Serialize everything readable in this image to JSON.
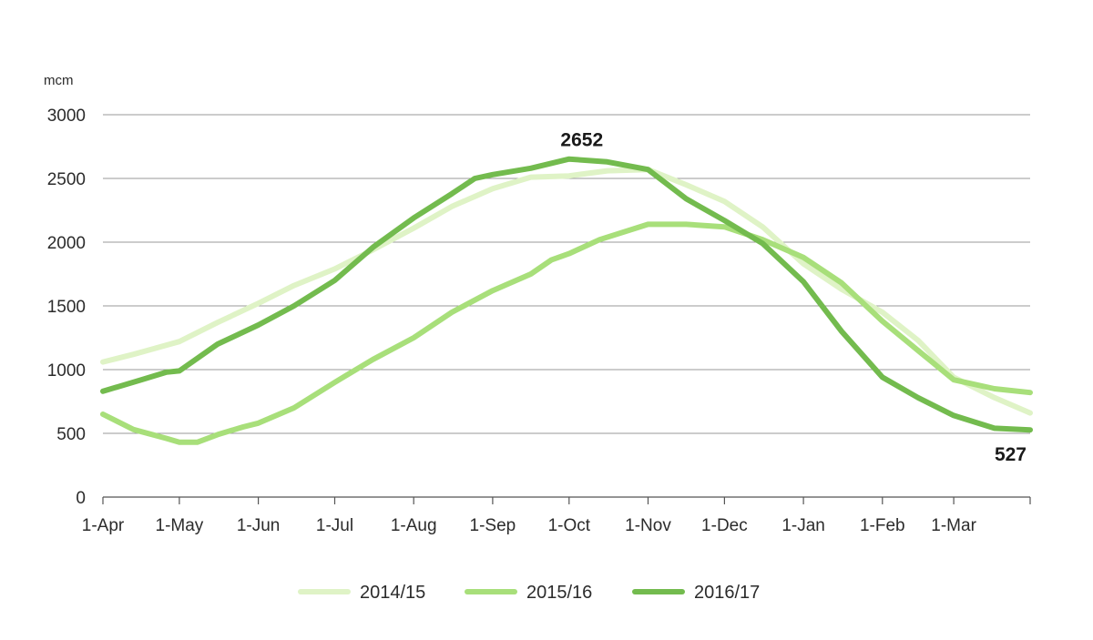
{
  "chart_data": {
    "type": "line",
    "title": "",
    "xlabel": "",
    "ylabel": "mcm",
    "ylim": [
      0,
      3000
    ],
    "yticks": [
      0,
      500,
      1000,
      1500,
      2000,
      2500,
      3000
    ],
    "x_tick_labels": [
      "1-Apr",
      "1-May",
      "1-Jun",
      "1-Jul",
      "1-Aug",
      "1-Sep",
      "1-Oct",
      "1-Nov",
      "1-Dec",
      "1-Jan",
      "1-Feb",
      "1-Mar"
    ],
    "x_tick_days": [
      0,
      30,
      61,
      91,
      122,
      153,
      183,
      214,
      244,
      275,
      306,
      334
    ],
    "x_max_day": 364,
    "grid": "horizontal",
    "legend_position": "bottom",
    "annotations": [
      {
        "text": "2652",
        "series": "2016/17",
        "x_day": 183,
        "y": 2652
      },
      {
        "text": "527",
        "series": "2016/17",
        "x_day": 364,
        "y": 527
      }
    ],
    "series": [
      {
        "name": "2014/15",
        "color": "#dff3c6",
        "x_days": [
          0,
          12,
          30,
          45,
          61,
          75,
          91,
          106,
          122,
          137,
          153,
          168,
          183,
          198,
          214,
          229,
          244,
          259,
          275,
          290,
          306,
          320,
          334,
          350,
          364
        ],
        "values": [
          1060,
          1120,
          1220,
          1370,
          1520,
          1660,
          1790,
          1940,
          2110,
          2280,
          2420,
          2510,
          2520,
          2560,
          2570,
          2450,
          2320,
          2120,
          1830,
          1630,
          1450,
          1230,
          940,
          780,
          660
        ]
      },
      {
        "name": "2015/16",
        "color": "#a8df7a",
        "x_days": [
          0,
          12,
          25,
          30,
          37,
          45,
          55,
          61,
          75,
          91,
          106,
          122,
          137,
          153,
          168,
          176,
          183,
          195,
          214,
          229,
          244,
          259,
          275,
          290,
          306,
          320,
          334,
          350,
          364
        ],
        "values": [
          650,
          530,
          460,
          430,
          430,
          490,
          550,
          580,
          700,
          900,
          1080,
          1250,
          1450,
          1620,
          1750,
          1860,
          1910,
          2020,
          2140,
          2140,
          2120,
          2020,
          1880,
          1680,
          1380,
          1150,
          920,
          850,
          820
        ]
      },
      {
        "name": "2016/17",
        "color": "#73bb4e",
        "x_days": [
          0,
          15,
          25,
          30,
          45,
          61,
          75,
          91,
          106,
          122,
          137,
          146,
          153,
          168,
          183,
          198,
          214,
          229,
          244,
          259,
          275,
          290,
          306,
          320,
          334,
          350,
          364
        ],
        "values": [
          830,
          920,
          980,
          990,
          1200,
          1350,
          1500,
          1700,
          1960,
          2190,
          2380,
          2500,
          2530,
          2580,
          2652,
          2630,
          2570,
          2340,
          2170,
          1990,
          1690,
          1300,
          940,
          780,
          640,
          540,
          527
        ]
      }
    ]
  }
}
